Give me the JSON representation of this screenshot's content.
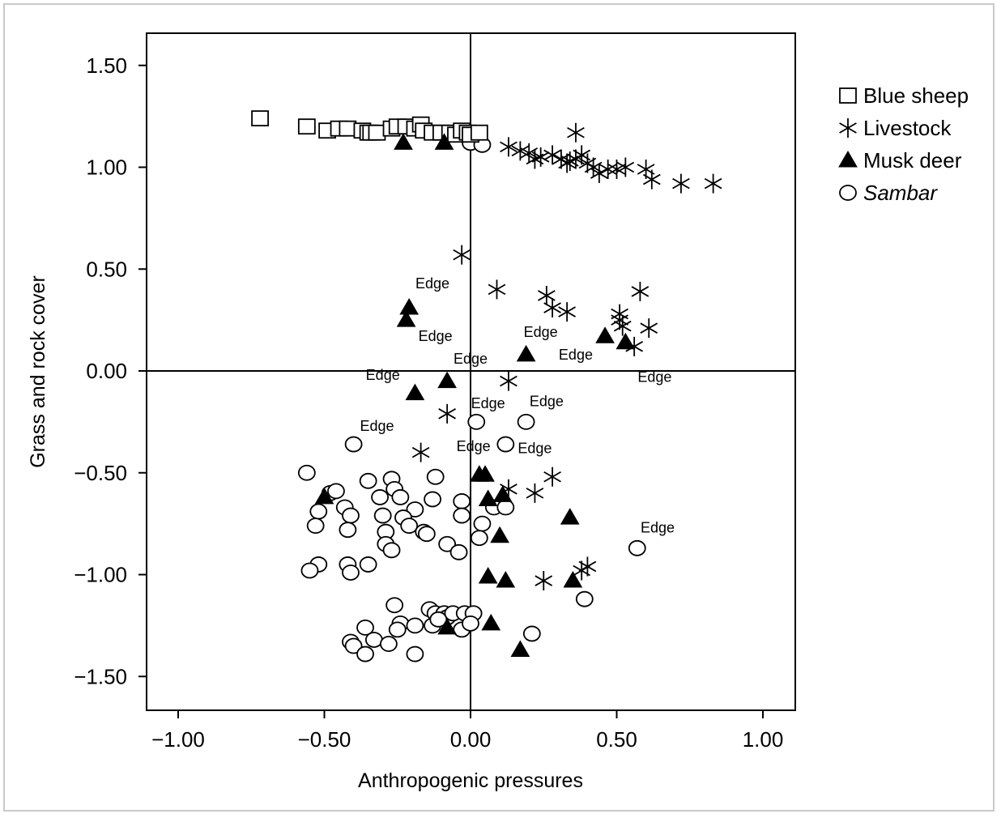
{
  "chart_data": {
    "type": "scatter",
    "xlabel": "Anthropogenic pressures",
    "ylabel": "Grass and rock cover",
    "xlim": [
      -1.1,
      1.1
    ],
    "ylim": [
      -1.67,
      1.67
    ],
    "xticks": [
      -1.0,
      -0.5,
      0.0,
      0.5,
      1.0
    ],
    "xtick_labels": [
      "−1.00",
      "−0.50",
      "0.00",
      "0.50",
      "1.00"
    ],
    "yticks": [
      1.5,
      1.0,
      0.5,
      0.0,
      -0.5,
      -1.0,
      -1.5
    ],
    "ytick_labels": [
      "1.50",
      "1.00",
      "0.50",
      "0.00",
      "−0.50",
      "−1.00",
      "−1.50"
    ],
    "legend_position": "right",
    "grid": false,
    "series": [
      {
        "name": "Blue sheep",
        "marker": "square",
        "points": [
          [
            -0.72,
            1.24
          ],
          [
            -0.56,
            1.2
          ],
          [
            -0.49,
            1.18
          ],
          [
            -0.45,
            1.19
          ],
          [
            -0.42,
            1.19
          ],
          [
            -0.37,
            1.18
          ],
          [
            -0.35,
            1.17
          ],
          [
            -0.34,
            1.17
          ],
          [
            -0.32,
            1.17
          ],
          [
            -0.27,
            1.19
          ],
          [
            -0.25,
            1.2
          ],
          [
            -0.22,
            1.2
          ],
          [
            -0.19,
            1.19
          ],
          [
            -0.17,
            1.21
          ],
          [
            -0.16,
            1.18
          ],
          [
            -0.13,
            1.17
          ],
          [
            -0.1,
            1.17
          ],
          [
            -0.07,
            1.17
          ],
          [
            -0.05,
            1.16
          ],
          [
            -0.03,
            1.18
          ],
          [
            -0.01,
            1.17
          ],
          [
            0.0,
            1.16
          ],
          [
            0.03,
            1.17
          ]
        ]
      },
      {
        "name": "Livestock",
        "marker": "star",
        "points": [
          [
            0.36,
            1.17
          ],
          [
            0.13,
            1.1
          ],
          [
            0.17,
            1.08
          ],
          [
            0.2,
            1.07
          ],
          [
            0.22,
            1.04
          ],
          [
            0.24,
            1.05
          ],
          [
            0.28,
            1.06
          ],
          [
            0.31,
            1.04
          ],
          [
            0.33,
            1.02
          ],
          [
            0.34,
            1.03
          ],
          [
            0.36,
            1.04
          ],
          [
            0.38,
            1.06
          ],
          [
            0.4,
            1.02
          ],
          [
            0.42,
            1.0
          ],
          [
            0.44,
            0.97
          ],
          [
            0.47,
            0.99
          ],
          [
            0.5,
            0.99
          ],
          [
            0.53,
            1.0
          ],
          [
            0.6,
            0.99
          ],
          [
            0.62,
            0.94
          ],
          [
            0.72,
            0.92
          ],
          [
            0.83,
            0.92
          ],
          [
            -0.03,
            0.57
          ],
          [
            0.09,
            0.4
          ],
          [
            0.26,
            0.37
          ],
          [
            0.28,
            0.31
          ],
          [
            0.33,
            0.29
          ],
          [
            0.51,
            0.28
          ],
          [
            0.51,
            0.25
          ],
          [
            0.58,
            0.39
          ],
          [
            0.52,
            0.22
          ],
          [
            0.61,
            0.21
          ],
          [
            0.56,
            0.12
          ],
          [
            0.13,
            -0.05
          ],
          [
            -0.08,
            -0.21
          ],
          [
            -0.17,
            -0.4
          ],
          [
            0.13,
            -0.58
          ],
          [
            0.22,
            -0.6
          ],
          [
            0.28,
            -0.52
          ],
          [
            0.25,
            -1.03
          ],
          [
            0.38,
            -0.98
          ],
          [
            0.4,
            -0.96
          ]
        ]
      },
      {
        "name": "Musk deer",
        "marker": "triangle",
        "points": [
          [
            -0.23,
            1.12
          ],
          [
            -0.09,
            1.12
          ],
          [
            -0.21,
            0.31
          ],
          [
            -0.22,
            0.25
          ],
          [
            0.19,
            0.08
          ],
          [
            0.46,
            0.17
          ],
          [
            0.53,
            0.14
          ],
          [
            -0.08,
            -0.05
          ],
          [
            -0.19,
            -0.11
          ],
          [
            -0.5,
            -0.62
          ],
          [
            0.03,
            -0.51
          ],
          [
            0.05,
            -0.51
          ],
          [
            0.06,
            -0.63
          ],
          [
            0.11,
            -0.61
          ],
          [
            0.1,
            -0.81
          ],
          [
            0.34,
            -0.72
          ],
          [
            0.06,
            -1.01
          ],
          [
            0.12,
            -1.03
          ],
          [
            0.35,
            -1.03
          ],
          [
            -0.08,
            -1.26
          ],
          [
            0.07,
            -1.24
          ],
          [
            0.17,
            -1.37
          ]
        ]
      },
      {
        "name": "Sambar",
        "marker": "circle",
        "points": [
          [
            0.0,
            1.12
          ],
          [
            0.04,
            1.11
          ],
          [
            -0.4,
            -0.36
          ],
          [
            0.02,
            -0.25
          ],
          [
            0.19,
            -0.25
          ],
          [
            0.12,
            -0.36
          ],
          [
            -0.56,
            -0.5
          ],
          [
            -0.35,
            -0.54
          ],
          [
            -0.27,
            -0.53
          ],
          [
            -0.12,
            -0.52
          ],
          [
            -0.48,
            -0.6
          ],
          [
            -0.46,
            -0.59
          ],
          [
            -0.26,
            -0.58
          ],
          [
            -0.31,
            -0.62
          ],
          [
            -0.24,
            -0.62
          ],
          [
            -0.52,
            -0.69
          ],
          [
            -0.43,
            -0.67
          ],
          [
            -0.41,
            -0.71
          ],
          [
            -0.3,
            -0.71
          ],
          [
            -0.19,
            -0.68
          ],
          [
            -0.13,
            -0.63
          ],
          [
            -0.03,
            -0.64
          ],
          [
            -0.03,
            -0.71
          ],
          [
            0.08,
            -0.67
          ],
          [
            0.12,
            -0.67
          ],
          [
            -0.53,
            -0.76
          ],
          [
            -0.42,
            -0.78
          ],
          [
            -0.29,
            -0.79
          ],
          [
            -0.23,
            -0.72
          ],
          [
            -0.21,
            -0.76
          ],
          [
            -0.16,
            -0.79
          ],
          [
            -0.15,
            -0.8
          ],
          [
            0.04,
            -0.75
          ],
          [
            0.03,
            -0.82
          ],
          [
            -0.52,
            -0.95
          ],
          [
            -0.55,
            -0.98
          ],
          [
            -0.42,
            -0.95
          ],
          [
            -0.41,
            -0.99
          ],
          [
            -0.35,
            -0.95
          ],
          [
            -0.29,
            -0.85
          ],
          [
            -0.27,
            -0.88
          ],
          [
            -0.08,
            -0.85
          ],
          [
            -0.04,
            -0.89
          ],
          [
            0.57,
            -0.87
          ],
          [
            0.39,
            -1.12
          ],
          [
            -0.26,
            -1.15
          ],
          [
            -0.14,
            -1.17
          ],
          [
            -0.12,
            -1.19
          ],
          [
            -0.09,
            -1.19
          ],
          [
            -0.08,
            -1.21
          ],
          [
            -0.06,
            -1.19
          ],
          [
            -0.02,
            -1.19
          ],
          [
            0.01,
            -1.19
          ],
          [
            -0.36,
            -1.26
          ],
          [
            -0.33,
            -1.32
          ],
          [
            -0.28,
            -1.34
          ],
          [
            -0.24,
            -1.24
          ],
          [
            -0.25,
            -1.27
          ],
          [
            -0.19,
            -1.25
          ],
          [
            -0.13,
            -1.25
          ],
          [
            -0.11,
            -1.22
          ],
          [
            -0.03,
            -1.27
          ],
          [
            0.0,
            -1.24
          ],
          [
            0.21,
            -1.29
          ],
          [
            -0.41,
            -1.33
          ],
          [
            -0.4,
            -1.35
          ],
          [
            -0.36,
            -1.39
          ],
          [
            -0.19,
            -1.39
          ]
        ]
      }
    ],
    "annotations": [
      {
        "text": "Edge",
        "x": -0.13,
        "y": 0.43
      },
      {
        "text": "Edge",
        "x": -0.12,
        "y": 0.17
      },
      {
        "text": "Edge",
        "x": 0.0,
        "y": 0.06
      },
      {
        "text": "Edge",
        "x": -0.3,
        "y": -0.02
      },
      {
        "text": "Edge",
        "x": 0.24,
        "y": 0.19
      },
      {
        "text": "Edge",
        "x": 0.36,
        "y": 0.08
      },
      {
        "text": "Edge",
        "x": 0.63,
        "y": -0.03
      },
      {
        "text": "Edge",
        "x": 0.06,
        "y": -0.16
      },
      {
        "text": "Edge",
        "x": 0.26,
        "y": -0.15
      },
      {
        "text": "Edge",
        "x": -0.32,
        "y": -0.27
      },
      {
        "text": "Edge",
        "x": 0.01,
        "y": -0.37
      },
      {
        "text": "Edge",
        "x": 0.22,
        "y": -0.38
      },
      {
        "text": "Edge",
        "x": 0.64,
        "y": -0.77
      }
    ]
  }
}
